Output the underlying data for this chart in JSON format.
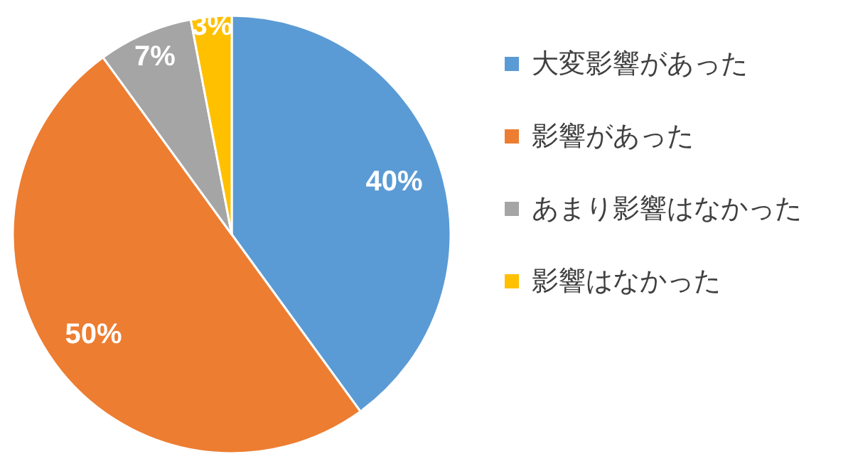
{
  "chart_data": {
    "type": "pie",
    "categories": [
      "大変影響があった",
      "影響があった",
      "あまり影響はなかった",
      "影響はなかった"
    ],
    "values": [
      40,
      50,
      7,
      3
    ],
    "colors": [
      "#5b9bd5",
      "#ed7d31",
      "#a5a5a5",
      "#ffc000"
    ],
    "value_labels": [
      "40%",
      "50%",
      "7%",
      "3%"
    ],
    "legend": "right"
  }
}
